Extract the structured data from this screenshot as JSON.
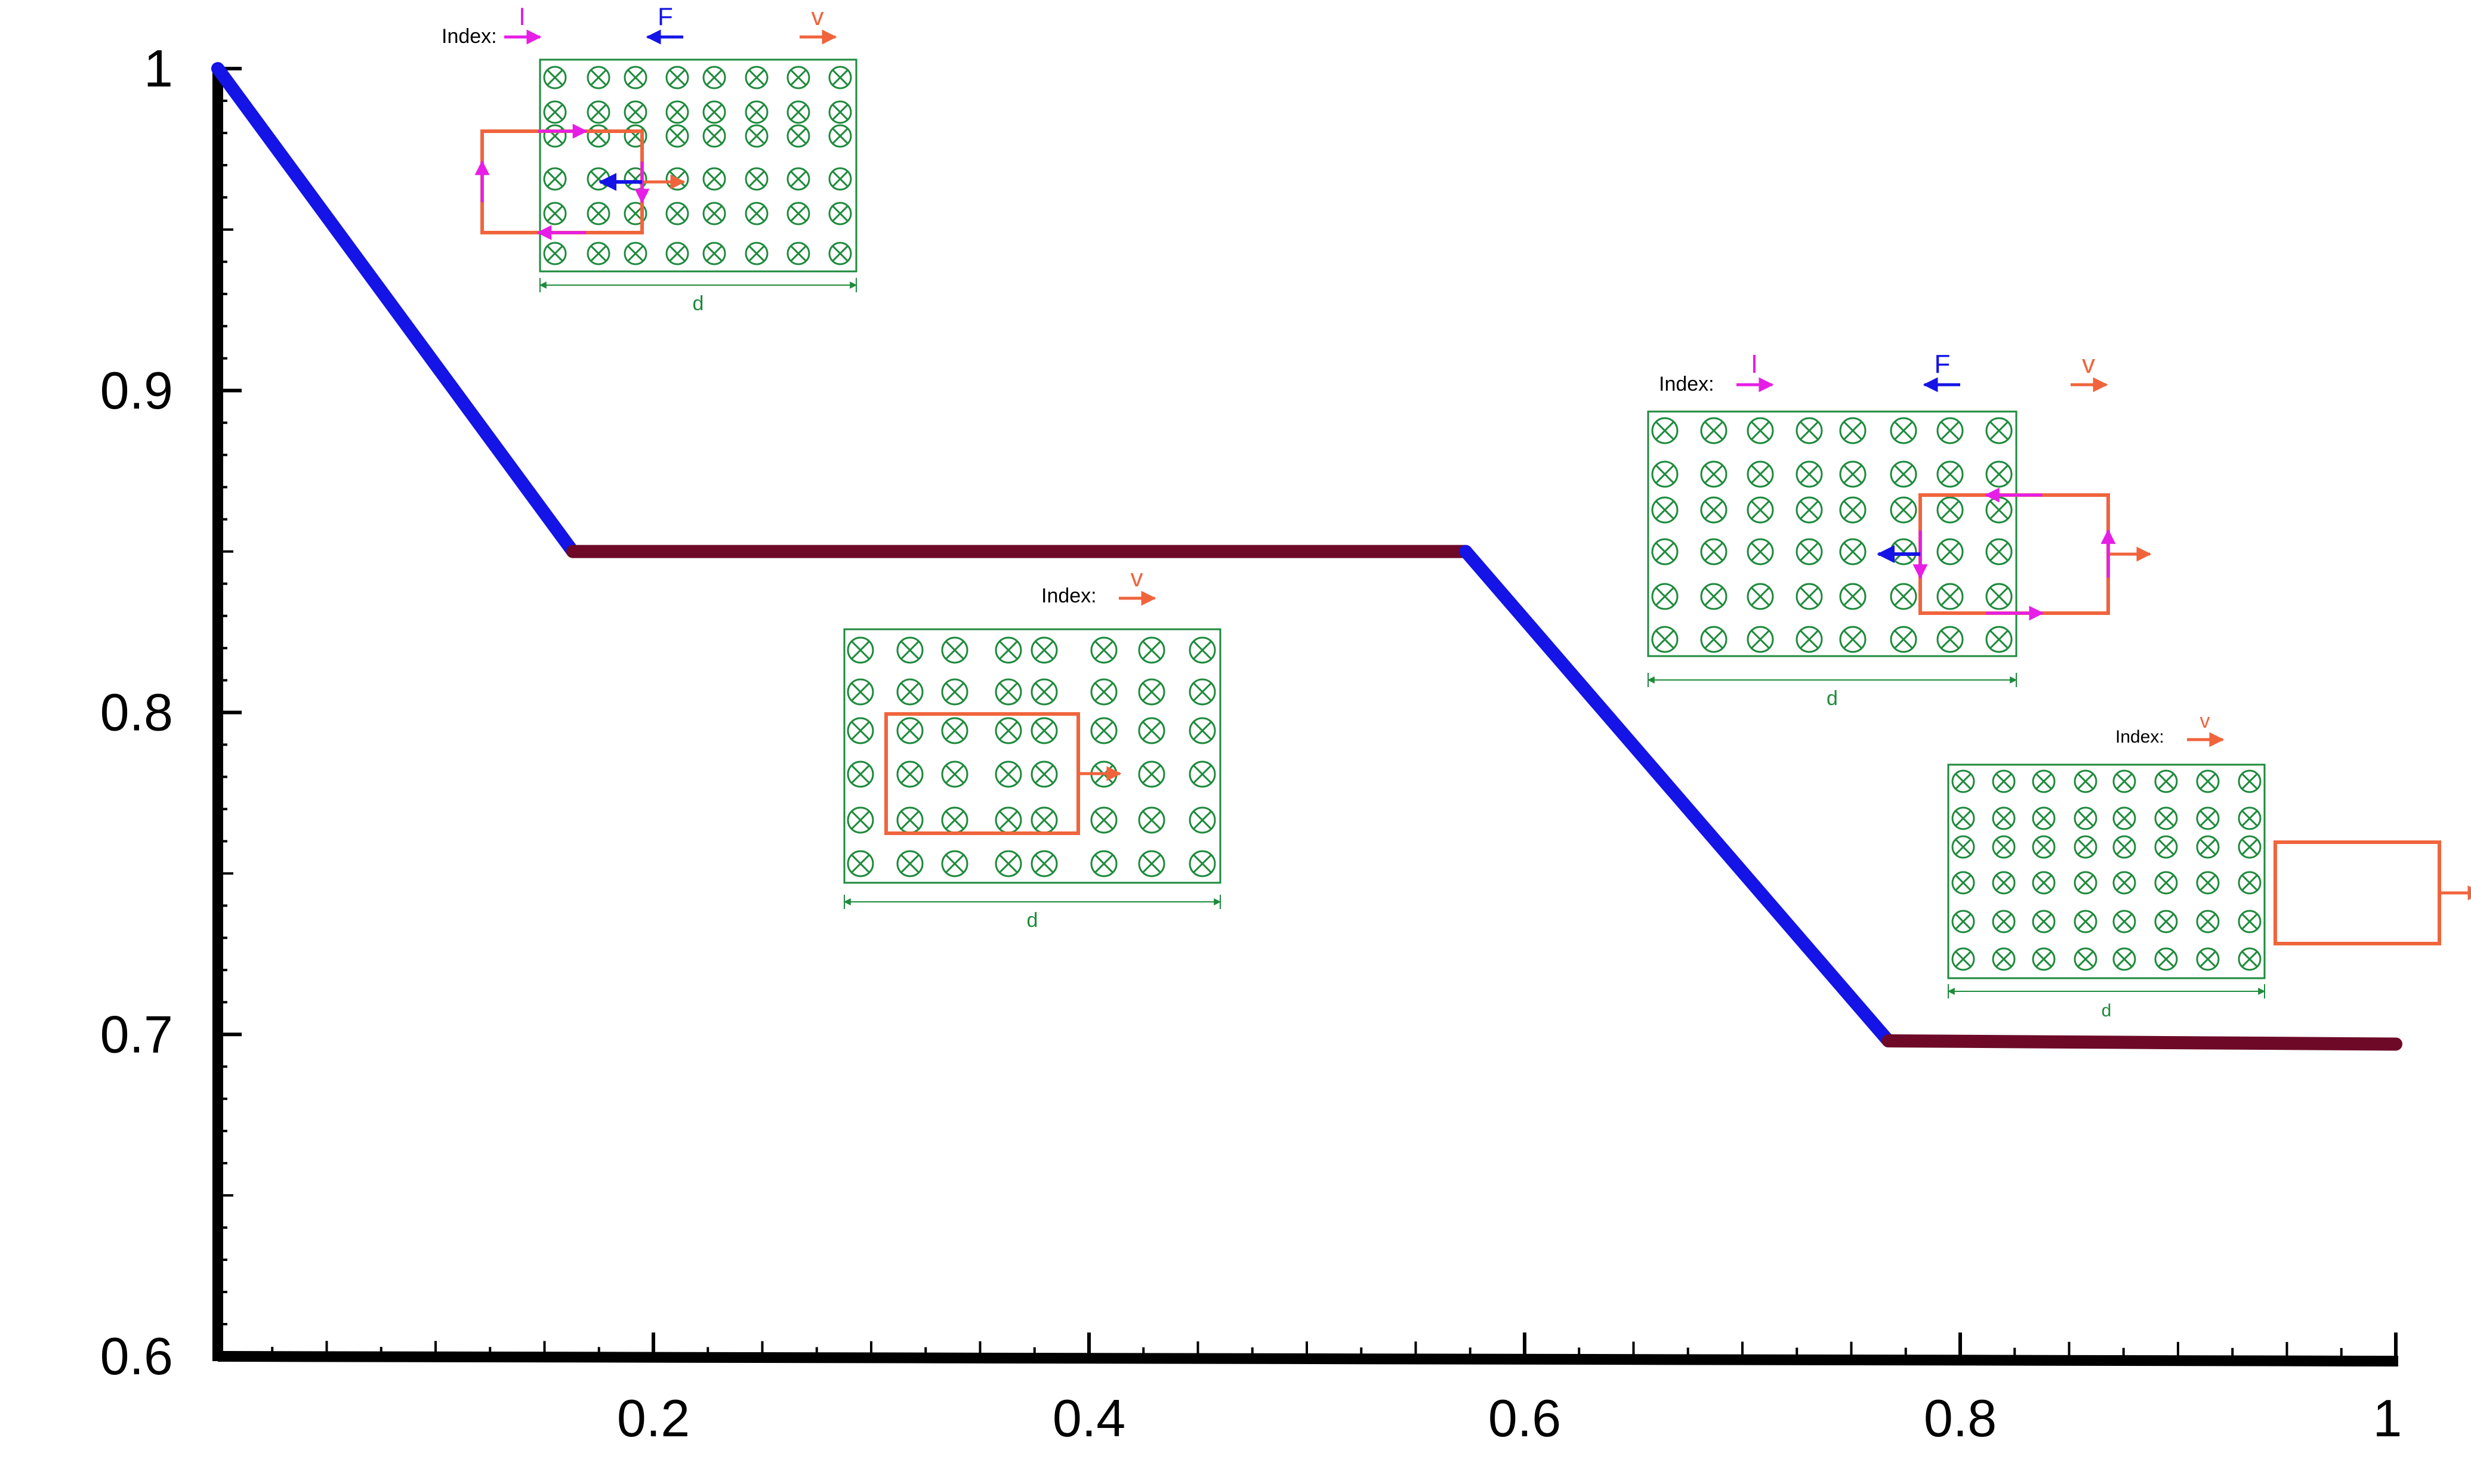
{
  "chart_data": {
    "type": "line",
    "title": "",
    "xlabel": "",
    "ylabel": "",
    "xlim": [
      0,
      1
    ],
    "ylim": [
      0.6,
      1
    ],
    "x_ticks": [
      0.2,
      0.4,
      0.6,
      0.8,
      1
    ],
    "x_tick_labels": [
      "0.2",
      "0.4",
      "0.6",
      "0.8",
      "1"
    ],
    "y_ticks": [
      0.6,
      0.7,
      0.8,
      0.9,
      1
    ],
    "y_tick_labels": [
      "0.6",
      "0.7",
      "0.8",
      "0.9",
      "1"
    ],
    "grid": false,
    "segments": [
      {
        "x": [
          0.0,
          0.163
        ],
        "y": [
          1.0,
          0.85
        ],
        "color": "#1414e6"
      },
      {
        "x": [
          0.163,
          0.573
        ],
        "y": [
          0.85,
          0.85
        ],
        "color": "#6e0a28"
      },
      {
        "x": [
          0.573,
          0.767
        ],
        "y": [
          0.85,
          0.698
        ],
        "color": "#1414e6"
      },
      {
        "x": [
          0.767,
          1.0
        ],
        "y": [
          0.698,
          0.697
        ],
        "color": "#6e0a28"
      }
    ]
  },
  "insets": [
    {
      "index_label": "Index:",
      "legend": [
        {
          "symbol": "I",
          "color": "#e61ee6",
          "dir": "right"
        },
        {
          "symbol": "F",
          "color": "#1414e6",
          "dir": "left"
        },
        {
          "symbol": "v",
          "color": "#f0643c",
          "dir": "right"
        }
      ],
      "field_label": "d",
      "loop_state": "entering"
    },
    {
      "index_label": "Index:",
      "legend": [
        {
          "symbol": "v",
          "color": "#f0643c",
          "dir": "right"
        }
      ],
      "field_label": "d",
      "loop_state": "inside"
    },
    {
      "index_label": "Index:",
      "legend": [
        {
          "symbol": "I",
          "color": "#e61ee6",
          "dir": "right"
        },
        {
          "symbol": "F",
          "color": "#1414e6",
          "dir": "left"
        },
        {
          "symbol": "v",
          "color": "#f0643c",
          "dir": "right"
        }
      ],
      "field_label": "d",
      "loop_state": "leaving"
    },
    {
      "index_label": "Index:",
      "legend": [
        {
          "symbol": "v",
          "color": "#f0643c",
          "dir": "right"
        }
      ],
      "field_label": "d",
      "loop_state": "outside"
    }
  ],
  "colors": {
    "field": "#1e8a3c",
    "loop": "#f0643c",
    "current": "#e61ee6",
    "force": "#1414e6",
    "axis": "#000000"
  }
}
